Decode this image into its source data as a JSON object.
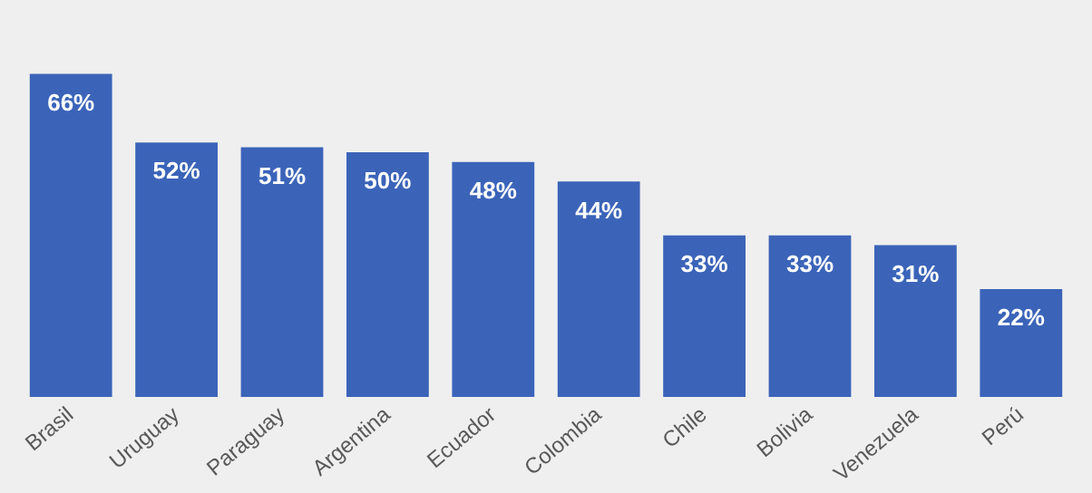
{
  "chart_data": {
    "type": "bar",
    "categories": [
      "Brasil",
      "Uruguay",
      "Paraguay",
      "Argentina",
      "Ecuador",
      "Colombia",
      "Chile",
      "Bolivia",
      "Venezuela",
      "Perú"
    ],
    "values": [
      66,
      52,
      51,
      50,
      48,
      44,
      33,
      33,
      31,
      22
    ],
    "value_labels": [
      "66%",
      "52%",
      "51%",
      "50%",
      "48%",
      "44%",
      "33%",
      "33%",
      "31%",
      "22%"
    ],
    "color": "#3b64b9",
    "grid": false,
    "legend": false
  }
}
